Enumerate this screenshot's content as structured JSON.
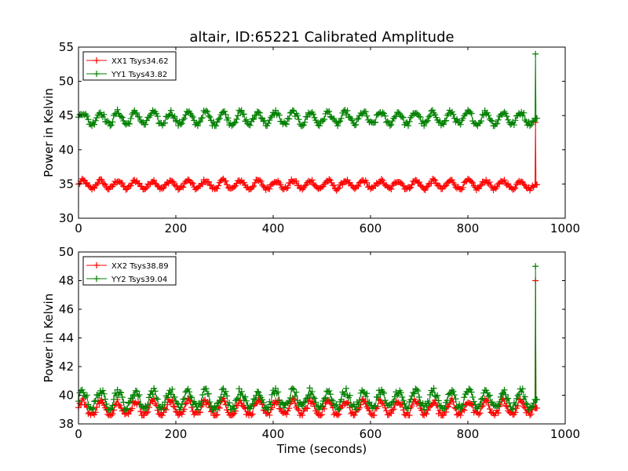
{
  "figure": {
    "title": "altair, ID:65221 Calibrated Amplitude"
  },
  "chart_data": [
    {
      "type": "line",
      "title": "altair, ID:65221 Calibrated Amplitude",
      "xlabel": "",
      "ylabel": "Power in Kelvin",
      "xlim": [
        0,
        1000
      ],
      "ylim": [
        30,
        55
      ],
      "xticks": [
        "0",
        "200",
        "400",
        "600",
        "800",
        "1000"
      ],
      "yticks": [
        "30",
        "35",
        "40",
        "45",
        "50",
        "55"
      ],
      "grid": false,
      "legend_position": "top-left",
      "marker": "+",
      "duration_seconds": 940,
      "oscillation_period_seconds": 36,
      "series": [
        {
          "name": "XX1 Tsys34.62",
          "color": "#ff0000",
          "mean": 34.9,
          "amplitude": 0.6,
          "range": [
            34.0,
            36.0
          ],
          "end_spike_value": 44.0
        },
        {
          "name": "YY1 Tsys43.82",
          "color": "#008000",
          "mean": 44.6,
          "amplitude": 0.9,
          "range": [
            43.5,
            46.2
          ],
          "end_spike_value": 54.0
        }
      ]
    },
    {
      "type": "line",
      "title": "",
      "xlabel": "Time (seconds)",
      "ylabel": "Power in Kelvin",
      "xlim": [
        0,
        1000
      ],
      "ylim": [
        38,
        50
      ],
      "xticks": [
        "0",
        "200",
        "400",
        "600",
        "800",
        "1000"
      ],
      "yticks": [
        "38",
        "40",
        "42",
        "44",
        "46",
        "48",
        "50"
      ],
      "grid": false,
      "legend_position": "top-left",
      "marker": "+",
      "duration_seconds": 940,
      "oscillation_period_seconds": 36,
      "series": [
        {
          "name": "XX2 Tsys38.89",
          "color": "#ff0000",
          "mean": 39.1,
          "amplitude": 0.5,
          "range": [
            38.6,
            39.9
          ],
          "end_spike_value": 48.0
        },
        {
          "name": "YY2 Tsys39.04",
          "color": "#008000",
          "mean": 39.7,
          "amplitude": 0.6,
          "range": [
            39.0,
            41.0
          ],
          "end_spike_value": 49.0
        }
      ]
    }
  ]
}
